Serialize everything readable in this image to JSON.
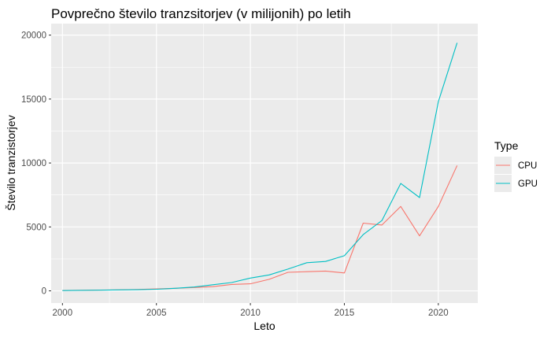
{
  "chart_data": {
    "type": "line",
    "title": "Povprečno število tranzsitorjev (v milijonih) po letih",
    "xlabel": "Leto",
    "ylabel": "Število tranzistorjev",
    "xlim": [
      1999.4,
      2022.1
    ],
    "ylim": [
      -950,
      20900
    ],
    "x_ticks": [
      2000,
      2005,
      2010,
      2015,
      2020
    ],
    "y_ticks": [
      0,
      5000,
      10000,
      15000,
      20000
    ],
    "x_tick_labels": [
      "2000",
      "2005",
      "2010",
      "2015",
      "2020"
    ],
    "y_tick_labels": [
      "0",
      "5000",
      "10000",
      "15000",
      "20000"
    ],
    "grid": true,
    "legend": {
      "title": "Type",
      "position": "right",
      "entries": [
        "CPU",
        "GPU"
      ]
    },
    "series": [
      {
        "name": "CPU",
        "color": "#F8766D",
        "x": [
          2000,
          2001,
          2002,
          2003,
          2004,
          2005,
          2006,
          2007,
          2008,
          2009,
          2010,
          2011,
          2012,
          2013,
          2014,
          2015,
          2016,
          2017,
          2018,
          2019,
          2020,
          2021
        ],
        "values": [
          30,
          45,
          60,
          80,
          110,
          150,
          200,
          260,
          330,
          500,
          550,
          900,
          1450,
          1500,
          1550,
          1400,
          5300,
          5150,
          6600,
          4300,
          6600,
          9800
        ]
      },
      {
        "name": "GPU",
        "color": "#00BFC4",
        "x": [
          2000,
          2001,
          2002,
          2003,
          2004,
          2005,
          2006,
          2007,
          2008,
          2009,
          2010,
          2011,
          2012,
          2013,
          2014,
          2015,
          2016,
          2017,
          2018,
          2019,
          2020,
          2021
        ],
        "values": [
          20,
          40,
          55,
          75,
          90,
          130,
          200,
          300,
          480,
          650,
          1000,
          1250,
          1700,
          2200,
          2300,
          2750,
          4400,
          5500,
          8400,
          7300,
          14800,
          19400
        ]
      }
    ]
  }
}
